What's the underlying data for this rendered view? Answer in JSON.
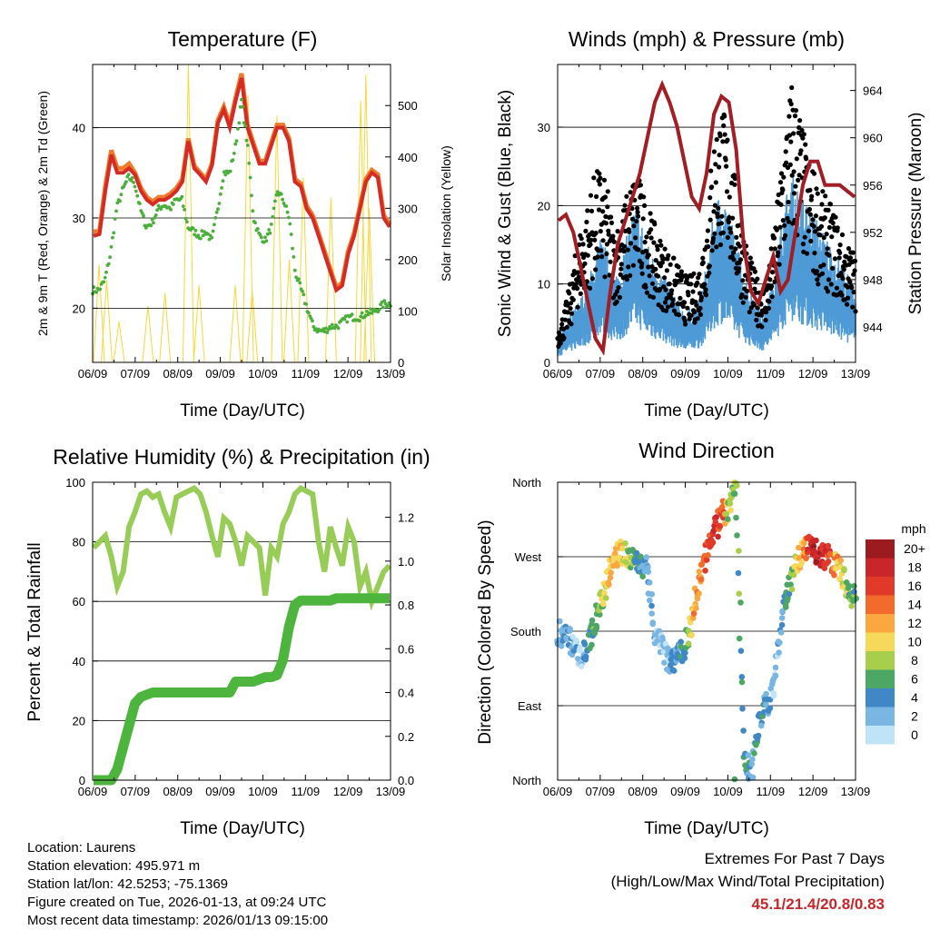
{
  "x_tick_labels": [
    "06/09",
    "07/09",
    "08/09",
    "09/09",
    "10/09",
    "11/09",
    "12/09",
    "13/09"
  ],
  "x_axis_label": "Time (Day/UTC)",
  "temperature": {
    "title": "Temperature (F)",
    "ylabel_left": "2m & 9m T (Red, Orange) & 2m Td (Green)",
    "ylabel_right": "Solar Insolation (Yellow)",
    "ylim_left": [
      14,
      47
    ],
    "yticks_left": [
      20,
      30,
      40
    ],
    "ylim_right": [
      0,
      580
    ],
    "yticks_right": [
      0,
      100,
      200,
      300,
      400,
      500
    ],
    "colors": {
      "t2m": "#d42b25",
      "t9m": "#f07a2a",
      "td": "#4caf3b",
      "solar": "#f7d73c"
    },
    "t2m": [
      28,
      28.2,
      33,
      37,
      35,
      35,
      35.5,
      34.8,
      33,
      32,
      31.5,
      32,
      32,
      32.4,
      33,
      34,
      38.5,
      35.5,
      34.8,
      34,
      35.8,
      40.5,
      42,
      40,
      43,
      45.5,
      40,
      38,
      36,
      36,
      38,
      40,
      40,
      38.5,
      34,
      33.5,
      31,
      30,
      28,
      26,
      24,
      22,
      22.5,
      26,
      28,
      31,
      34,
      35,
      34.5,
      30,
      29
    ],
    "t9m": [
      28.5,
      28.5,
      33.5,
      37.5,
      35.5,
      35.5,
      36,
      35,
      33.3,
      32.3,
      31.8,
      32.3,
      32.3,
      32.7,
      33.3,
      34.3,
      38.8,
      35.8,
      35,
      34.3,
      36,
      40.8,
      42.3,
      40.3,
      43.3,
      46,
      40.3,
      38.3,
      36.3,
      36.3,
      38.3,
      40.3,
      40.3,
      38.8,
      34.3,
      33.8,
      31.3,
      30.3,
      28.3,
      26.3,
      24.3,
      22.3,
      22.8,
      26.3,
      28.3,
      31.3,
      34.3,
      35.3,
      34.8,
      30.3,
      29.3
    ],
    "td": [
      22,
      22,
      23,
      26,
      31,
      33,
      34.5,
      34,
      31,
      29,
      29.5,
      31,
      31.5,
      31,
      32,
      32,
      29,
      28.5,
      28,
      28.5,
      27.5,
      31,
      35,
      35,
      38,
      43,
      38,
      30,
      28,
      27.5,
      29,
      33,
      32,
      30,
      24,
      22,
      20,
      18,
      17.5,
      17.5,
      18,
      18,
      18.5,
      19,
      19,
      19,
      19.5,
      19.5,
      20,
      20.5,
      20.5
    ],
    "solar_events": [
      {
        "t": 0.15,
        "v": 190
      },
      {
        "t": 0.33,
        "v": 160
      },
      {
        "t": 0.62,
        "v": 80
      },
      {
        "t": 1.3,
        "v": 110
      },
      {
        "t": 1.7,
        "v": 135
      },
      {
        "t": 2.25,
        "v": 580
      },
      {
        "t": 2.5,
        "v": 150
      },
      {
        "t": 3.35,
        "v": 150
      },
      {
        "t": 3.65,
        "v": 520
      },
      {
        "t": 3.75,
        "v": 140
      },
      {
        "t": 4.33,
        "v": 480
      },
      {
        "t": 4.62,
        "v": 200
      },
      {
        "t": 4.95,
        "v": 360
      },
      {
        "t": 5.6,
        "v": 320
      },
      {
        "t": 6.3,
        "v": 510
      },
      {
        "t": 6.42,
        "v": 560
      },
      {
        "t": 6.5,
        "v": 300
      }
    ]
  },
  "winds": {
    "title": "Winds (mph) & Pressure (mb)",
    "ylabel_left": "Sonic Wind & Gust (Blue, Black)",
    "ylabel_right": "Station Pressure (Maroon)",
    "ylim_left": [
      0,
      38
    ],
    "yticks_left": [
      0,
      10,
      20,
      30
    ],
    "ylim_right": [
      941,
      966.2
    ],
    "yticks_right": [
      944,
      948,
      952,
      956,
      960,
      964
    ],
    "colors": {
      "wind": "#4e9ad6",
      "gust": "#000000",
      "pressure": "#a21d24"
    },
    "wind_mean": [
      2,
      3,
      4,
      5,
      6,
      8,
      10,
      9,
      7,
      8,
      11,
      13,
      11,
      9,
      8,
      7,
      6,
      5,
      4,
      4.5,
      5,
      8,
      12,
      14,
      13,
      10,
      8,
      6,
      5,
      4,
      6,
      9,
      13,
      15,
      14,
      13,
      12,
      11,
      10,
      9,
      8,
      7,
      6
    ],
    "gust_mean": [
      3,
      5,
      8,
      12,
      14,
      17,
      18,
      16,
      12,
      14,
      16,
      18,
      16,
      14,
      12,
      11,
      10,
      9,
      8,
      8,
      9,
      14,
      21,
      24,
      22,
      17,
      13,
      10,
      8,
      7,
      10,
      15,
      22,
      26,
      24,
      20,
      18,
      16,
      15,
      14,
      12,
      11,
      10
    ],
    "pressure": [
      953,
      953.5,
      952,
      949,
      946,
      943,
      942,
      947,
      951,
      953,
      955,
      957,
      960,
      963,
      964.5,
      963,
      961,
      958,
      955,
      954,
      957,
      962,
      963.5,
      963,
      959,
      951,
      947,
      946,
      948,
      950,
      947,
      948,
      952,
      956,
      958,
      958,
      956,
      956,
      956,
      955.5,
      955
    ]
  },
  "humidity": {
    "title": "Relative Humidity (%) & Precipitation (in)",
    "ylabel_left": "Percent & Total Rainfall",
    "ylim_left": [
      0,
      100
    ],
    "yticks_left": [
      0,
      20,
      40,
      60,
      80,
      100
    ],
    "ylim_right": [
      0,
      1.36
    ],
    "yticks_right": [
      "0.0",
      "0.2",
      "0.4",
      "0.6",
      "0.8",
      "1.0",
      "1.2"
    ],
    "colors": {
      "rh": "#97cc56",
      "precip": "#4db53e"
    },
    "rh": [
      78,
      80,
      82,
      75,
      65,
      70,
      85,
      90,
      96,
      97,
      95,
      96,
      90,
      85,
      95,
      96,
      97,
      98,
      96,
      90,
      82,
      75,
      88,
      86,
      80,
      72,
      82,
      80,
      78,
      62,
      78,
      75,
      86,
      90,
      96,
      98,
      97,
      96,
      80,
      70,
      85,
      78,
      72,
      85,
      80,
      65,
      70,
      60,
      65,
      70,
      72
    ],
    "precip": [
      0,
      0,
      0,
      0,
      0.05,
      0.15,
      0.25,
      0.35,
      0.38,
      0.39,
      0.4,
      0.4,
      0.4,
      0.4,
      0.4,
      0.4,
      0.4,
      0.4,
      0.4,
      0.4,
      0.4,
      0.4,
      0.4,
      0.4,
      0.45,
      0.45,
      0.45,
      0.45,
      0.46,
      0.47,
      0.47,
      0.48,
      0.55,
      0.7,
      0.8,
      0.82,
      0.82,
      0.82,
      0.82,
      0.82,
      0.82,
      0.83,
      0.83,
      0.83,
      0.83,
      0.83,
      0.83,
      0.83,
      0.83,
      0.83,
      0.83
    ]
  },
  "wind_direction": {
    "title": "Wind Direction",
    "ylabel": "Direction (Colored By Speed)",
    "direction_labels": [
      "North",
      "East",
      "South",
      "West",
      "North"
    ],
    "legend_title": "mph",
    "legend_labels": [
      "20+",
      "18",
      "16",
      "14",
      "12",
      "10",
      "8",
      "6",
      "4",
      "2",
      "0"
    ],
    "legend_colors": [
      "#9b1b1e",
      "#c8262b",
      "#e23a2a",
      "#f36b2c",
      "#f9a73e",
      "#f6d85a",
      "#a8cf4b",
      "#4da764",
      "#3f88c5",
      "#7ab6e4",
      "#bfe3f7"
    ],
    "direction_deg": [
      180,
      175,
      165,
      150,
      160,
      190,
      220,
      250,
      272,
      275,
      268,
      255,
      265,
      175,
      160,
      140,
      150,
      160,
      190,
      240,
      280,
      300,
      320,
      330,
      355,
      30,
      5,
      70,
      90,
      110,
      190,
      230,
      260,
      280,
      280,
      275,
      270,
      265,
      250,
      230,
      220
    ],
    "speed": [
      3,
      4,
      3,
      2,
      5,
      7,
      9,
      12,
      12,
      10,
      8,
      5,
      4,
      3,
      2,
      3,
      4,
      5,
      12,
      14,
      16,
      18,
      16,
      9,
      8,
      5,
      4,
      6,
      4,
      3,
      4,
      7,
      10,
      14,
      18,
      19,
      18,
      16,
      10,
      8,
      7
    ]
  },
  "info": {
    "location": "Location: Laurens",
    "elevation": "Station elevation: 495.971 m",
    "latlon": "Station lat/lon: 42.5253; -75.1369",
    "created": "Figure created on Tue, 2026-01-13, at 09:24 UTC",
    "latest": "Most recent data timestamp: 2026/01/13 09:15:00"
  },
  "extremes": {
    "title": "Extremes For Past 7 Days",
    "subtitle": "(High/Low/Max Wind/Total Precipitation)",
    "values": "45.1/21.4/20.8/0.83"
  }
}
